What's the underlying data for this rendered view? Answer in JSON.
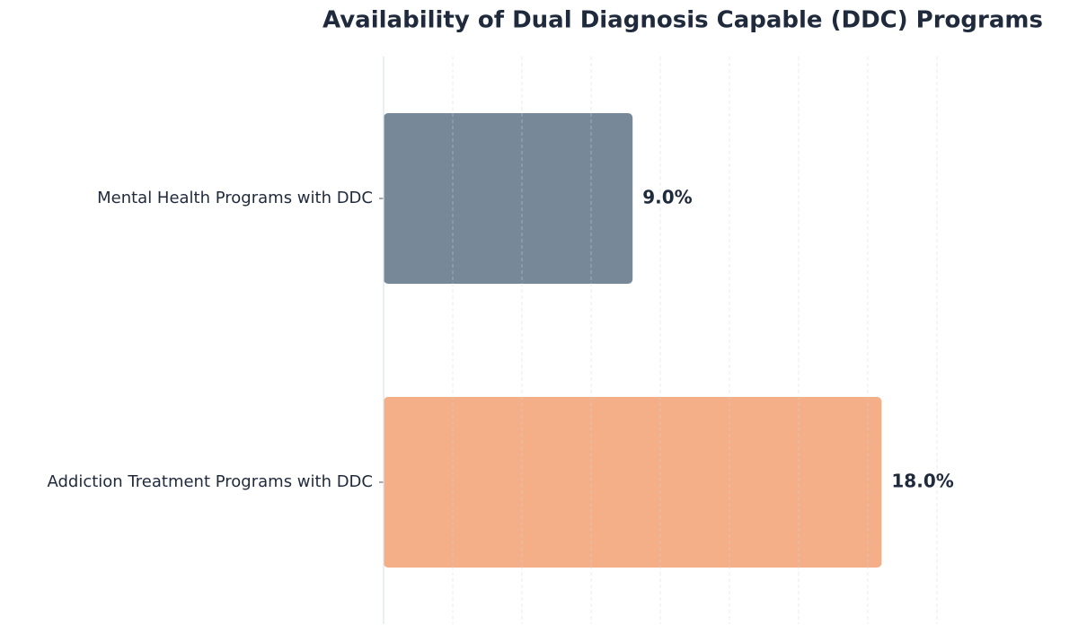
{
  "chart_data": {
    "type": "hbar",
    "title": "Availability of Dual Diagnosis Capable (DDC) Programs",
    "categories": [
      "Mental Health Programs with DDC",
      "Addiction Treatment Programs with DDC"
    ],
    "values": [
      9.0,
      18.0
    ],
    "value_labels": [
      "9.0%",
      "18.0%"
    ],
    "colors": [
      "#778899",
      "#f4af88"
    ],
    "xlim": [
      0,
      25
    ],
    "xticks": [
      0,
      2.5,
      5,
      7.5,
      10,
      12.5,
      15,
      17.5,
      20
    ],
    "grid": true
  }
}
